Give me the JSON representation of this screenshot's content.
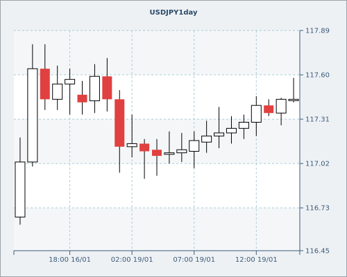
{
  "chart_data": {
    "type": "candlestick",
    "title": "USDJPY1day",
    "y_ticks": [
      116.45,
      116.73,
      117.02,
      117.31,
      117.6,
      117.89
    ],
    "ylim": [
      116.45,
      117.89
    ],
    "x_ticks": [
      "18:00 16/01",
      "02:00 19/01",
      "07:00 19/01",
      "12:00 19/01"
    ],
    "grid": true,
    "up_color": "#ffffff",
    "down_color": "#e04040",
    "candles": [
      {
        "open": 116.67,
        "high": 117.19,
        "low": 116.62,
        "close": 117.03
      },
      {
        "open": 117.03,
        "high": 117.8,
        "low": 117.0,
        "close": 117.64
      },
      {
        "open": 117.64,
        "high": 117.8,
        "low": 117.37,
        "close": 117.44
      },
      {
        "open": 117.44,
        "high": 117.66,
        "low": 117.37,
        "close": 117.54
      },
      {
        "open": 117.54,
        "high": 117.64,
        "low": 117.34,
        "close": 117.57
      },
      {
        "open": 117.47,
        "high": 117.56,
        "low": 117.34,
        "close": 117.42
      },
      {
        "open": 117.43,
        "high": 117.67,
        "low": 117.35,
        "close": 117.59
      },
      {
        "open": 117.59,
        "high": 117.71,
        "low": 117.36,
        "close": 117.44
      },
      {
        "open": 117.44,
        "high": 117.5,
        "low": 116.96,
        "close": 117.13
      },
      {
        "open": 117.13,
        "high": 117.34,
        "low": 117.06,
        "close": 117.15
      },
      {
        "open": 117.15,
        "high": 117.18,
        "low": 116.92,
        "close": 117.1
      },
      {
        "open": 117.11,
        "high": 117.18,
        "low": 116.94,
        "close": 117.07
      },
      {
        "open": 117.08,
        "high": 117.23,
        "low": 117.02,
        "close": 117.09
      },
      {
        "open": 117.09,
        "high": 117.22,
        "low": 117.03,
        "close": 117.11
      },
      {
        "open": 117.1,
        "high": 117.23,
        "low": 116.99,
        "close": 117.17
      },
      {
        "open": 117.16,
        "high": 117.3,
        "low": 117.09,
        "close": 117.2
      },
      {
        "open": 117.2,
        "high": 117.39,
        "low": 117.12,
        "close": 117.22
      },
      {
        "open": 117.22,
        "high": 117.33,
        "low": 117.15,
        "close": 117.25
      },
      {
        "open": 117.25,
        "high": 117.34,
        "low": 117.18,
        "close": 117.29
      },
      {
        "open": 117.29,
        "high": 117.46,
        "low": 117.2,
        "close": 117.4
      },
      {
        "open": 117.4,
        "high": 117.44,
        "low": 117.33,
        "close": 117.35
      },
      {
        "open": 117.35,
        "high": 117.45,
        "low": 117.27,
        "close": 117.44
      },
      {
        "open": 117.44,
        "high": 117.58,
        "low": 117.42,
        "close": 117.44
      }
    ]
  }
}
